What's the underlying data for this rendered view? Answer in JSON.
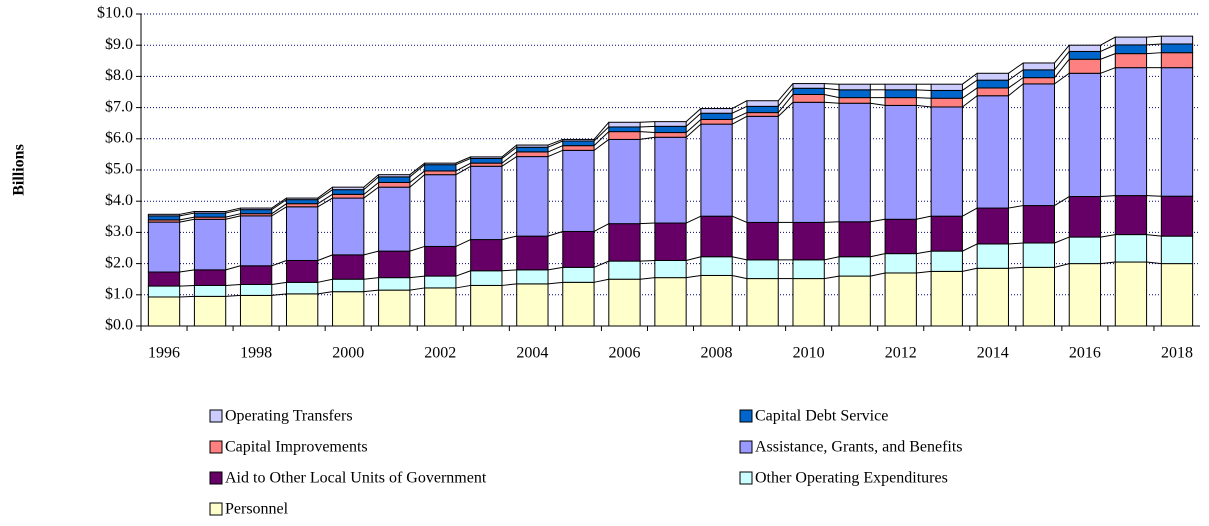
{
  "chart_data": {
    "type": "stacked-bar",
    "y_label": "Billions",
    "categories": [
      "1996",
      null,
      "1998",
      null,
      "2000",
      null,
      "2002",
      null,
      "2004",
      null,
      "2006",
      null,
      "2008",
      null,
      "2010",
      null,
      "2012",
      null,
      "2014",
      null,
      "2016",
      null,
      "2018"
    ],
    "series": [
      {
        "name": "Personnel",
        "color": "#ffffcc",
        "values": [
          0.93,
          0.95,
          0.98,
          1.03,
          1.1,
          1.15,
          1.22,
          1.3,
          1.35,
          1.4,
          1.5,
          1.55,
          1.62,
          1.52,
          1.52,
          1.6,
          1.7,
          1.75,
          1.85,
          1.88,
          2.0,
          2.05,
          2.0
        ]
      },
      {
        "name": "Other Operating Expenditures",
        "color": "#ccffff",
        "values": [
          0.35,
          0.35,
          0.35,
          0.37,
          0.4,
          0.4,
          0.38,
          0.47,
          0.45,
          0.48,
          0.58,
          0.55,
          0.6,
          0.6,
          0.6,
          0.62,
          0.62,
          0.65,
          0.78,
          0.78,
          0.85,
          0.88,
          0.88
        ]
      },
      {
        "name": "Aid to Other Local Units of Government",
        "color": "#660066",
        "values": [
          0.45,
          0.5,
          0.6,
          0.7,
          0.78,
          0.85,
          0.95,
          1.0,
          1.08,
          1.15,
          1.2,
          1.2,
          1.3,
          1.2,
          1.2,
          1.12,
          1.1,
          1.12,
          1.15,
          1.2,
          1.3,
          1.25,
          1.28
        ]
      },
      {
        "name": "Assistance, Grants, and Benefits",
        "color": "#9999ff",
        "values": [
          1.6,
          1.62,
          1.6,
          1.72,
          1.82,
          2.05,
          2.3,
          2.35,
          2.55,
          2.6,
          2.7,
          2.75,
          2.95,
          3.4,
          3.85,
          3.8,
          3.65,
          3.5,
          3.6,
          3.9,
          3.95,
          4.1,
          4.12
        ]
      },
      {
        "name": "Capital Improvements",
        "color": "#ff8080",
        "values": [
          0.07,
          0.07,
          0.07,
          0.1,
          0.12,
          0.15,
          0.12,
          0.1,
          0.15,
          0.15,
          0.25,
          0.15,
          0.15,
          0.12,
          0.25,
          0.18,
          0.25,
          0.28,
          0.25,
          0.2,
          0.45,
          0.45,
          0.48
        ]
      },
      {
        "name": "Capital Debt Service",
        "color": "#0066cc",
        "values": [
          0.13,
          0.13,
          0.13,
          0.13,
          0.15,
          0.18,
          0.2,
          0.15,
          0.15,
          0.15,
          0.15,
          0.2,
          0.2,
          0.2,
          0.2,
          0.25,
          0.25,
          0.25,
          0.25,
          0.25,
          0.25,
          0.28,
          0.28
        ]
      },
      {
        "name": "Operating Transfers",
        "color": "#ccccff",
        "values": [
          0.05,
          0.05,
          0.05,
          0.05,
          0.08,
          0.07,
          0.05,
          0.05,
          0.07,
          0.05,
          0.15,
          0.15,
          0.15,
          0.18,
          0.15,
          0.18,
          0.18,
          0.2,
          0.22,
          0.22,
          0.2,
          0.25,
          0.25
        ]
      }
    ],
    "ylim": [
      0,
      10
    ],
    "yticks": [
      {
        "value": 0,
        "label": "$0.0"
      },
      {
        "value": 1,
        "label": "$1.0"
      },
      {
        "value": 2,
        "label": "$2.0"
      },
      {
        "value": 3,
        "label": "$3.0"
      },
      {
        "value": 4,
        "label": "$4.0"
      },
      {
        "value": 5,
        "label": "$5.0"
      },
      {
        "value": 6,
        "label": "$6.0"
      },
      {
        "value": 7,
        "label": "$7.0"
      },
      {
        "value": 8,
        "label": "$8.0"
      },
      {
        "value": 9,
        "label": "$9.0"
      },
      {
        "value": 10,
        "label": "$10.0"
      }
    ],
    "grid": true
  }
}
